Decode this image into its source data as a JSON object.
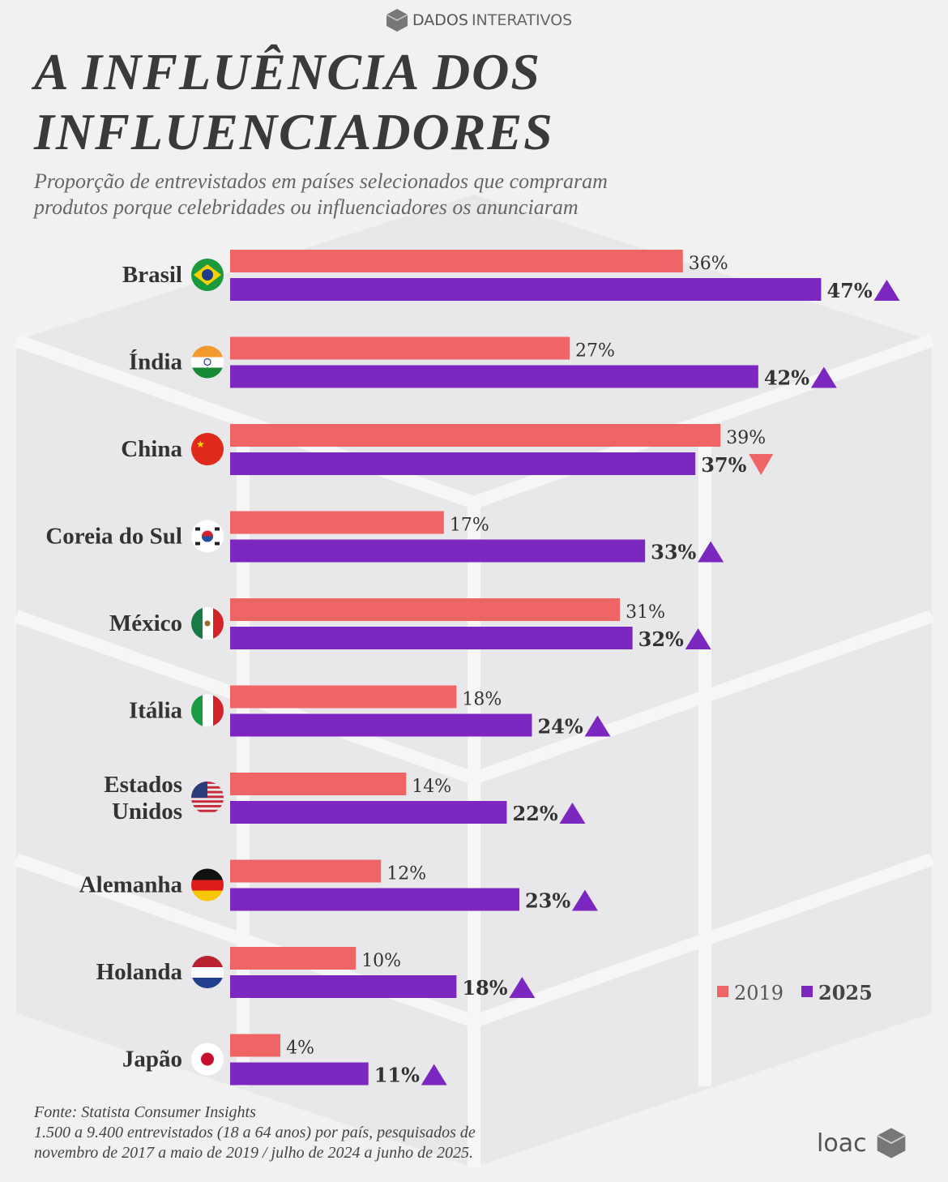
{
  "header": {
    "brand_bold": "DADOS",
    "brand_rest": "INTERATIVOS",
    "title_line1": "A INFLUÊNCIA DOS",
    "title_line2": "INFLUENCIADORES",
    "subtitle_line1": "Proporção de entrevistados em países selecionados que compraram",
    "subtitle_line2": "produtos porque celebridades ou influenciadores os anunciaram"
  },
  "chart_data": {
    "type": "bar",
    "orientation": "horizontal",
    "title": "A INFLUÊNCIA DOS INFLUENCIADORES",
    "categories": [
      "Brasil",
      "Índia",
      "China",
      "Coreia do Sul",
      "México",
      "Itália",
      "Estados Unidos",
      "Alemanha",
      "Holanda",
      "Japão"
    ],
    "series": [
      {
        "name": "2019",
        "color": "#ef6464",
        "values": [
          36,
          27,
          39,
          17,
          31,
          18,
          14,
          12,
          10,
          4
        ]
      },
      {
        "name": "2025",
        "color": "#7b27c0",
        "values": [
          47,
          42,
          37,
          33,
          32,
          24,
          22,
          23,
          18,
          11
        ]
      }
    ],
    "trend": [
      "up",
      "up",
      "down",
      "up",
      "up",
      "up",
      "up",
      "up",
      "up",
      "up"
    ],
    "unit": "%",
    "legend": "bottom-right",
    "xlim": [
      0,
      50
    ]
  },
  "footer": {
    "line1": "Fonte:  Statista Consumer Insights",
    "line2": "1.500 a 9.400 entrevistados (18 a 64 anos) por país, pesquisados de",
    "line3": "novembro de 2017 a maio de 2019 / julho de 2024 a junho de 2025."
  },
  "logo": {
    "text": "loac"
  }
}
